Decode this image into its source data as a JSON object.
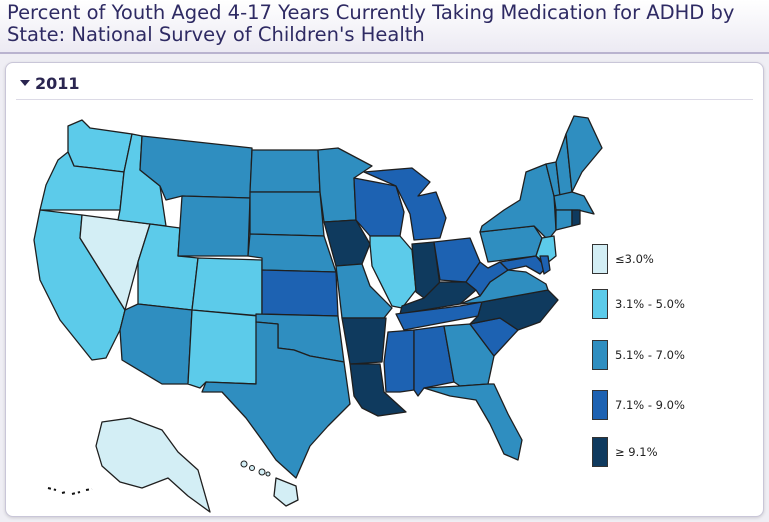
{
  "title": "Percent of Youth Aged 4-17 Years Currently Taking Medication for ADHD by State: National Survey of Children's Health",
  "year": "2011",
  "colors": {
    "c1": "#d3eef5",
    "c2": "#5ccbea",
    "c3": "#2f8ec0",
    "c4": "#1d62b2",
    "c5": "#0f3a5e"
  },
  "legend": [
    {
      "label": "≤3.0%",
      "key": "c1"
    },
    {
      "label": "3.1% - 5.0%",
      "key": "c2"
    },
    {
      "label": "5.1% - 7.0%",
      "key": "c3"
    },
    {
      "label": "7.1% - 9.0%",
      "key": "c4"
    },
    {
      "label": "≥ 9.1%",
      "key": "c5"
    }
  ],
  "states": {
    "WA": "c2",
    "OR": "c2",
    "CA": "c2",
    "NV": "c1",
    "ID": "c2",
    "UT": "c2",
    "AZ": "c3",
    "MT": "c3",
    "WY": "c3",
    "CO": "c2",
    "NM": "c2",
    "ND": "c3",
    "SD": "c3",
    "NE": "c3",
    "KS": "c4",
    "OK": "c3",
    "TX": "c3",
    "MN": "c3",
    "IA": "c5",
    "MO": "c3",
    "AR": "c5",
    "LA": "c5",
    "WI": "c4",
    "IL": "c2",
    "MI": "c4",
    "IN": "c5",
    "OH": "c4",
    "KY": "c5",
    "TN": "c4",
    "MS": "c4",
    "AL": "c4",
    "GA": "c3",
    "FL": "c3",
    "SC": "c4",
    "NC": "c5",
    "VA": "c3",
    "WV": "c4",
    "PA": "c3",
    "NY": "c3",
    "ME": "c3",
    "NH": "c3",
    "VT": "c3",
    "MA": "c3",
    "CT": "c3",
    "RI": "c5",
    "NJ": "c2",
    "DE": "c4",
    "MD": "c4",
    "AK": "c1",
    "HI": "c1"
  }
}
